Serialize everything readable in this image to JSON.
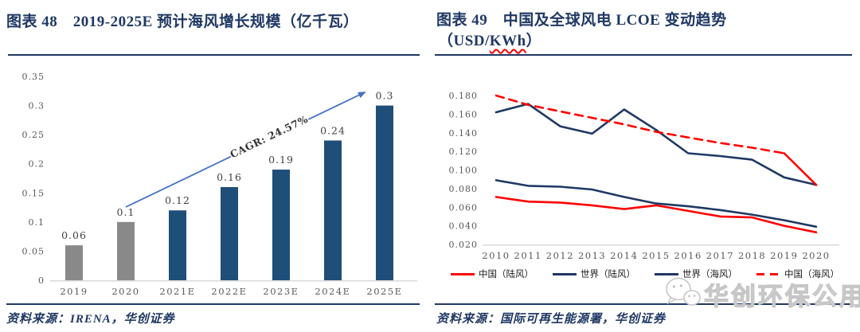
{
  "colors": {
    "navy": "#1f3864",
    "bar_blue": "#1f4e79",
    "bar_gray": "#898989",
    "red": "#fe0000",
    "arrow_blue": "#4472c4",
    "axis_gray": "#d9d9d9",
    "tick_gray": "#595959"
  },
  "left_panel": {
    "source": "资料来源：IRENA，华创证券"
  },
  "right_panel": {
    "title_line1": "图表 49　中国及全球风电 LCOE 变动趋势",
    "title_line2_prefix": "（USD/",
    "title_line2_kwh": "KWh",
    "title_line2_suffix": "）",
    "source": "资料来源：国际可再生能源署，华创证券",
    "watermark_text": "华创环保公用"
  },
  "chart_data": [
    {
      "type": "bar",
      "title": "图表 48　2019-2025E 预计海风增长规模（亿千瓦）",
      "categories": [
        "2019",
        "2020",
        "2021E",
        "2022E",
        "2023E",
        "2024E",
        "2025E"
      ],
      "values": [
        0.06,
        0.1,
        0.12,
        0.16,
        0.19,
        0.24,
        0.3
      ],
      "value_labels": [
        "0.06",
        "0.1",
        "0.12",
        "0.16",
        "0.19",
        "0.24",
        "0.3"
      ],
      "bar_colors": [
        "gray",
        "gray",
        "blue",
        "blue",
        "blue",
        "blue",
        "blue"
      ],
      "ylim": [
        0,
        0.35
      ],
      "ytick_labels": [
        "0",
        "0.05",
        "0.1",
        "0.15",
        "0.2",
        "0.25",
        "0.3",
        "0.35"
      ],
      "grid": "off",
      "annotation": {
        "text": "CAGR: 24.57%"
      },
      "xlabel": "",
      "ylabel": ""
    },
    {
      "type": "line",
      "title": "图表 49　中国及全球风电 LCOE 变动趋势（USD/KWh）",
      "x": [
        "2010",
        "2011",
        "2012",
        "2013",
        "2014",
        "2015",
        "2016",
        "2017",
        "2018",
        "2019",
        "2020"
      ],
      "ylim": [
        0.02,
        0.18
      ],
      "ytick_labels": [
        "0.020",
        "0.040",
        "0.060",
        "0.080",
        "0.100",
        "0.120",
        "0.140",
        "0.160",
        "0.180"
      ],
      "grid": "off",
      "legend_position": "bottom",
      "series": [
        {
          "name": "中国（陆风）",
          "color": "red",
          "style": "solid",
          "values": [
            0.071,
            0.066,
            0.065,
            0.062,
            0.058,
            0.062,
            0.056,
            0.05,
            0.049,
            0.04,
            0.033
          ]
        },
        {
          "name": "世界（陆风）",
          "color": "navy",
          "style": "solid",
          "values": [
            0.089,
            0.083,
            0.082,
            0.079,
            0.071,
            0.064,
            0.061,
            0.057,
            0.052,
            0.046,
            0.039
          ]
        },
        {
          "name": "世界（海风）",
          "color": "navy",
          "style": "solid",
          "values": [
            0.162,
            0.171,
            0.147,
            0.139,
            0.165,
            0.143,
            0.118,
            0.115,
            0.111,
            0.092,
            0.084
          ]
        },
        {
          "name": "中国（海风）",
          "color": "red",
          "style": "dashed",
          "solid_from_index": 9,
          "values": [
            0.18,
            0.17,
            0.163,
            0.156,
            0.149,
            0.141,
            0.135,
            0.129,
            0.124,
            0.118,
            0.084
          ]
        }
      ]
    }
  ]
}
